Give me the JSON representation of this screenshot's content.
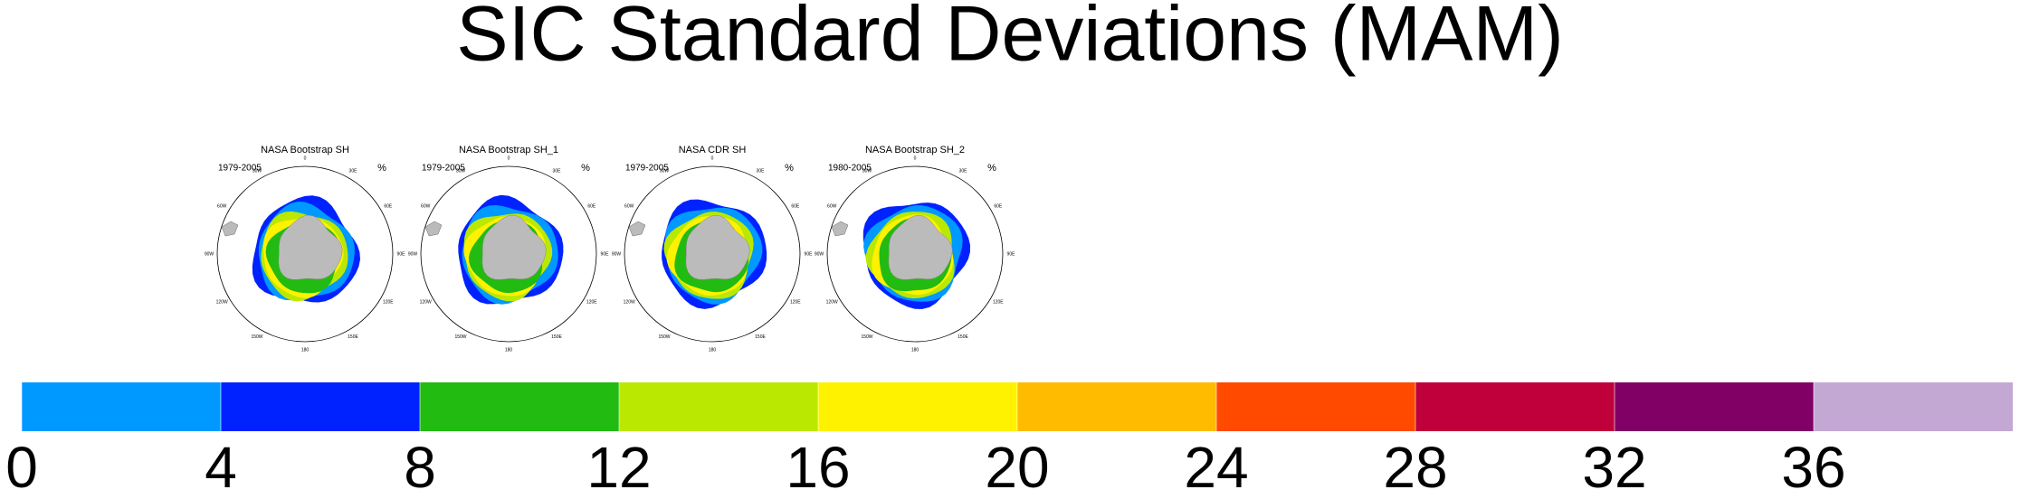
{
  "title": "SIC Standard Deviations (MAM)",
  "panels": [
    {
      "title": "NASA Bootstrap SH",
      "period": "1979-2005",
      "units": "%"
    },
    {
      "title": "NASA Bootstrap SH_1",
      "period": "1979-2005",
      "units": "%"
    },
    {
      "title": "NASA CDR SH",
      "period": "1979-2005",
      "units": "%"
    },
    {
      "title": "NASA Bootstrap SH_2",
      "period": "1980-2005",
      "units": "%"
    }
  ],
  "lon_labels": [
    "0",
    "30E",
    "60E",
    "90E",
    "120E",
    "150E",
    "180",
    "150W",
    "120W",
    "90W",
    "60W",
    "30W"
  ],
  "colorbar": {
    "ticks": [
      0,
      4,
      8,
      12,
      16,
      20,
      24,
      28,
      32,
      36
    ],
    "colors": [
      "#0099ff",
      "#0022ff",
      "#22bb11",
      "#bbe800",
      "#fff200",
      "#ffbb00",
      "#ff4a00",
      "#c0003a",
      "#800066",
      "#c4a8d4"
    ]
  }
}
